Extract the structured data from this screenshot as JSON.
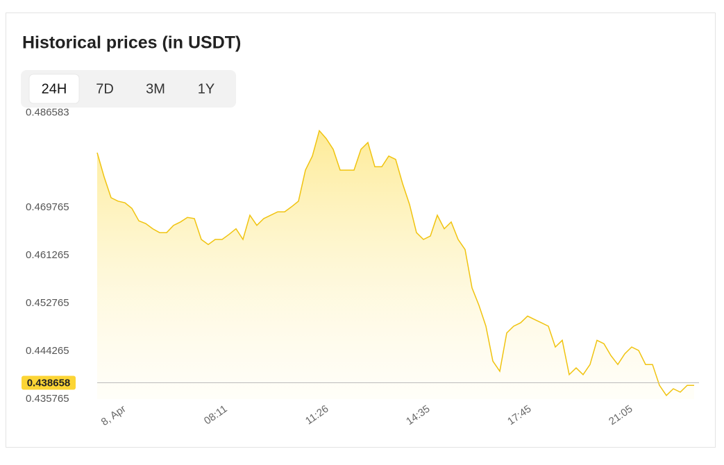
{
  "chart_data": {
    "type": "line",
    "title": "Historical prices (in USDT)",
    "tabs": [
      "24H",
      "7D",
      "3M",
      "1Y"
    ],
    "active_tab": "24H",
    "values": [
      0.4795,
      0.4752,
      0.4715,
      0.4709,
      0.4706,
      0.4696,
      0.4674,
      0.4669,
      0.466,
      0.4653,
      0.4653,
      0.4666,
      0.4672,
      0.468,
      0.4678,
      0.4641,
      0.4632,
      0.4641,
      0.4641,
      0.465,
      0.466,
      0.4641,
      0.4684,
      0.4666,
      0.4678,
      0.4684,
      0.469,
      0.469,
      0.4699,
      0.4709,
      0.4764,
      0.4789,
      0.4834,
      0.482,
      0.4801,
      0.4764,
      0.4764,
      0.4764,
      0.4801,
      0.4813,
      0.477,
      0.477,
      0.4789,
      0.4783,
      0.474,
      0.4703,
      0.4653,
      0.4641,
      0.4647,
      0.4684,
      0.466,
      0.4672,
      0.4641,
      0.4623,
      0.4555,
      0.4524,
      0.4487,
      0.4425,
      0.4407,
      0.4475,
      0.4487,
      0.4493,
      0.4505,
      0.4499,
      0.4493,
      0.4487,
      0.445,
      0.4462,
      0.4401,
      0.4413,
      0.4401,
      0.4419,
      0.4462,
      0.4456,
      0.4435,
      0.4419,
      0.4438,
      0.445,
      0.4444,
      0.4419,
      0.4419,
      0.4382,
      0.4364,
      0.4376,
      0.437,
      0.4382,
      0.4382
    ],
    "color": "#f0c30f",
    "current_price": 0.438658,
    "xlim": [
      0,
      86
    ],
    "xticks": [
      {
        "value": 4,
        "label": "8, Apr"
      },
      {
        "value": 18.6,
        "label": "08:11"
      },
      {
        "value": 33.2,
        "label": "11:26"
      },
      {
        "value": 47.8,
        "label": "14:35"
      },
      {
        "value": 62.4,
        "label": "17:45"
      },
      {
        "value": 77,
        "label": "21:05"
      }
    ],
    "ylim": [
      0.435765,
      0.486583
    ],
    "yticks": [
      0.435765,
      0.444265,
      0.452765,
      0.461265,
      0.469765,
      0.486583
    ]
  }
}
